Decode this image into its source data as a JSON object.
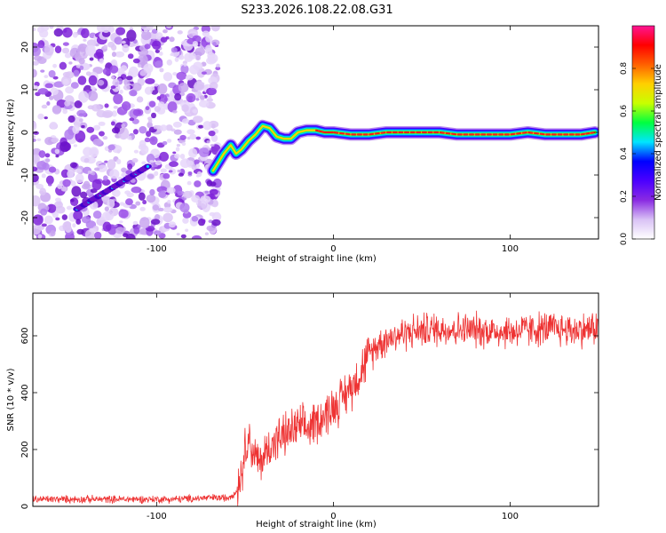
{
  "figure_title": "S233.2026.108.22.08.G31",
  "chart_data": [
    {
      "type": "heatmap",
      "title": "S233.2026.108.22.08.G31",
      "xlabel": "Height of straight line (km)",
      "ylabel": "Frequency (Hz)",
      "xlim": [
        -170,
        150
      ],
      "ylim": [
        -25,
        25
      ],
      "xticks": [
        -100,
        0,
        100
      ],
      "yticks": [
        -20,
        -10,
        0,
        10,
        20
      ],
      "colorbar": {
        "label": "Normalized spectral amplitude",
        "range": [
          0,
          1
        ],
        "ticks": [
          0.0,
          0.2,
          0.4,
          0.6,
          0.8
        ],
        "colormap": [
          "#ffffff",
          "#d9c2f5",
          "#8a2be2",
          "#4b00ff",
          "#0000ff",
          "#00e5ff",
          "#00ff40",
          "#c8ff00",
          "#ffd000",
          "#ff6000",
          "#ff0000",
          "#ff1493"
        ]
      },
      "noise_region_x": [
        -170,
        -65
      ],
      "diagonal_feature": {
        "x": [
          -145,
          -105
        ],
        "y": [
          -18,
          -8
        ]
      },
      "ridge": {
        "x": [
          -68,
          -62,
          -58,
          -55,
          -52,
          -48,
          -44,
          -40,
          -36,
          -32,
          -28,
          -24,
          -20,
          -15,
          -10,
          -5,
          0,
          10,
          20,
          30,
          40,
          50,
          60,
          70,
          80,
          90,
          100,
          110,
          120,
          130,
          140,
          148
        ],
        "y": [
          -9,
          -5,
          -3,
          -5,
          -4,
          -2,
          -0.5,
          1.5,
          1,
          -1,
          -1.5,
          -1.5,
          0,
          0.5,
          0.5,
          0,
          0,
          -0.5,
          -0.5,
          0,
          0,
          0,
          0,
          -0.5,
          -0.5,
          -0.5,
          -0.5,
          0,
          -0.5,
          -0.5,
          -0.5,
          0
        ]
      }
    },
    {
      "type": "line",
      "xlabel": "Height of straight line (km)",
      "ylabel": "SNR (10 * v/v)",
      "xlim": [
        -170,
        150
      ],
      "ylim": [
        0,
        750
      ],
      "xticks": [
        -100,
        0,
        100
      ],
      "yticks": [
        0,
        200,
        400,
        600
      ],
      "series": [
        {
          "name": "SNR",
          "color": "#ee3333",
          "x": [
            -170,
            -150,
            -130,
            -110,
            -90,
            -70,
            -60,
            -55,
            -52,
            -50,
            -48,
            -45,
            -42,
            -40,
            -35,
            -30,
            -25,
            -20,
            -15,
            -10,
            -5,
            0,
            5,
            10,
            15,
            20,
            25,
            30,
            40,
            50,
            60,
            80,
            100,
            120,
            140,
            150
          ],
          "y": [
            25,
            25,
            25,
            25,
            25,
            30,
            30,
            50,
            120,
            200,
            250,
            180,
            150,
            170,
            220,
            240,
            260,
            280,
            270,
            300,
            320,
            350,
            380,
            420,
            470,
            530,
            570,
            590,
            610,
            620,
            625,
            620,
            615,
            625,
            620,
            630
          ]
        }
      ]
    }
  ]
}
